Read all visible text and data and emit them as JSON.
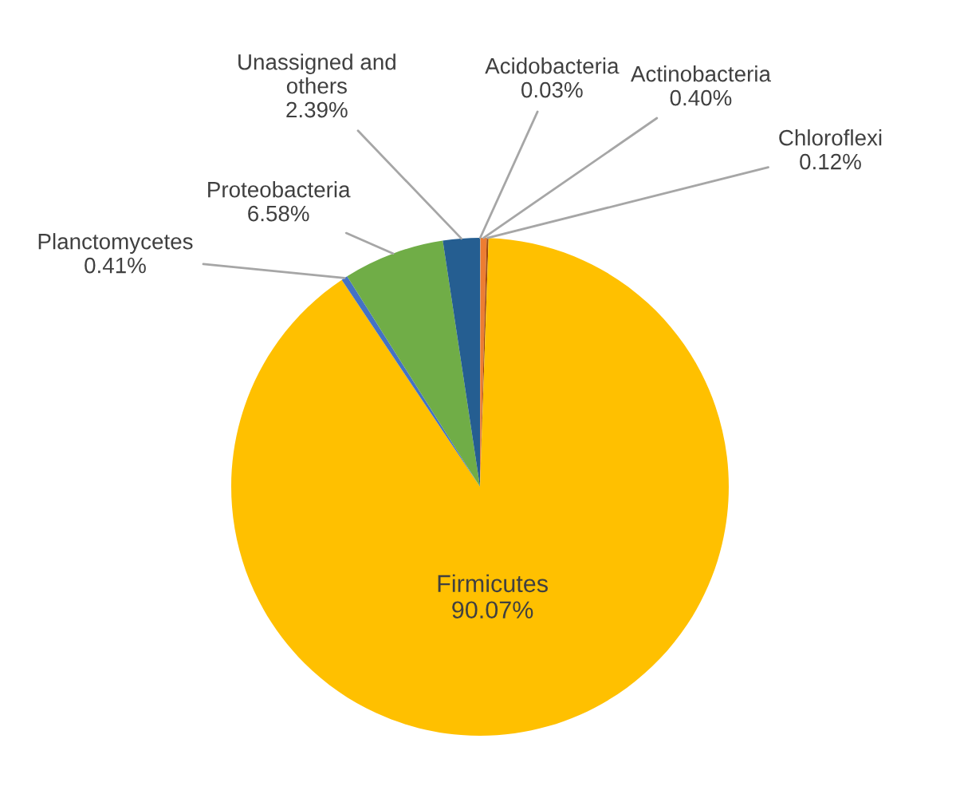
{
  "chart_data": {
    "type": "pie",
    "categories": [
      "Acidobacteria",
      "Actinobacteria",
      "Chloroflexi",
      "Firmicutes",
      "Planctomycetes",
      "Proteobacteria",
      "Unassigned and\nothers"
    ],
    "values": [
      0.03,
      0.4,
      0.12,
      90.07,
      0.41,
      6.58,
      2.39
    ],
    "value_labels": [
      "0.03%",
      "0.40%",
      "0.12%",
      "90.07%",
      "0.41%",
      "6.58%",
      "2.39%"
    ],
    "colors": [
      "#a5a5a5",
      "#ed7d31",
      "#9e480e",
      "#ffc000",
      "#4472c4",
      "#70ad47",
      "#255e91"
    ],
    "legend": false
  }
}
